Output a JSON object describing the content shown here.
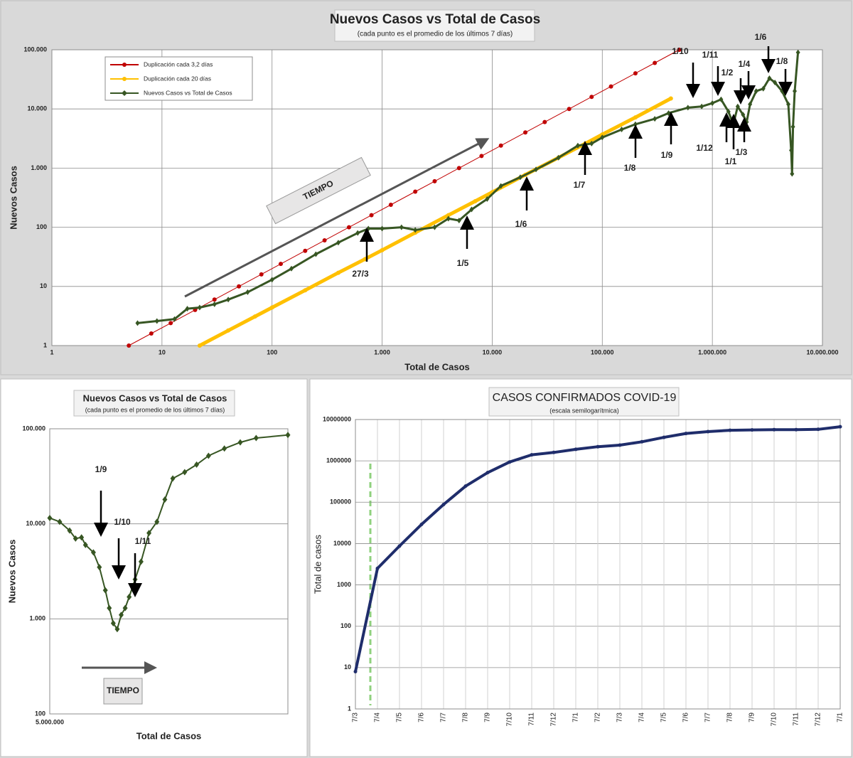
{
  "chart_data": [
    {
      "type": "line",
      "title": "Nuevos Casos vs Total de Casos",
      "subtitle": "(cada punto es el promedio de los últimos 7 días)",
      "x_label": "Total de Casos",
      "y_label": "Nuevos Casos",
      "xscale": "log",
      "yscale": "log",
      "xlim": [
        1,
        10000000
      ],
      "xticks": [
        1,
        10,
        100,
        {
          "value": 1000,
          "label": "1.000"
        },
        {
          "value": 10000,
          "label": "10.000"
        },
        {
          "value": 100000,
          "label": "100.000"
        },
        {
          "value": 1000000,
          "label": "1.000.000"
        },
        {
          "value": 10000000,
          "label": "10.000.000"
        }
      ],
      "ylim": [
        1,
        100000
      ],
      "yticks": [
        1,
        10,
        100,
        {
          "value": 1000,
          "label": "1.000"
        },
        {
          "value": 10000,
          "label": "10.000"
        },
        {
          "value": 100000,
          "label": "100.000"
        }
      ],
      "grid": true,
      "legend": "upper left",
      "series": [
        {
          "name": "Duplicación cada 3,2 días",
          "color": "#c00000",
          "marker": "circle",
          "x": [
            5,
            8,
            12,
            20,
            30,
            50,
            80,
            120,
            200,
            300,
            500,
            800,
            1200,
            2000,
            3000,
            5000,
            8000,
            12000,
            20000,
            30000,
            50000,
            80000,
            120000,
            200000,
            300000,
            500000
          ],
          "values": [
            1,
            1.6,
            2.4,
            4,
            6,
            10,
            16,
            24,
            40,
            60,
            100,
            160,
            240,
            400,
            600,
            1000,
            1600,
            2400,
            4000,
            6000,
            10000,
            16000,
            24000,
            40000,
            60000,
            100000
          ]
        },
        {
          "name": "Duplicación cada 20 días",
          "color": "#ffc000",
          "marker": "circle",
          "x": [
            22,
            40,
            70,
            100,
            200,
            400,
            700,
            1000,
            2000,
            4000,
            7000,
            10000,
            20000,
            40000,
            70000,
            100000,
            200000,
            420000
          ],
          "values": [
            1,
            1.8,
            3.1,
            4.4,
            8.6,
            17,
            29,
            41,
            81,
            160,
            275,
            390,
            770,
            1500,
            2600,
            3700,
            7200,
            15000
          ]
        },
        {
          "name": "Nuevos Casos vs Total de Casos",
          "color": "#375623",
          "marker": "diamond",
          "x": [
            6,
            9,
            13,
            17,
            22,
            30,
            40,
            60,
            100,
            150,
            250,
            400,
            600,
            750,
            1000,
            1500,
            2000,
            3000,
            4000,
            5000,
            6500,
            9000,
            12000,
            18000,
            25000,
            40000,
            60000,
            80000,
            100000,
            150000,
            200000,
            300000,
            400000,
            600000,
            800000,
            1000000,
            1200000,
            1400000,
            1550000,
            1700000,
            1900000,
            2050000,
            2200000,
            2500000,
            2900000,
            3300000,
            3700000,
            4300000,
            4900000,
            5200000,
            5300000,
            5400000,
            5600000,
            6000000
          ],
          "values": [
            2.4,
            2.6,
            2.8,
            4.2,
            4.4,
            5,
            6,
            8,
            13,
            20,
            35,
            55,
            80,
            95,
            95,
            100,
            90,
            100,
            140,
            130,
            200,
            300,
            500,
            700,
            950,
            1500,
            2400,
            2600,
            3300,
            4500,
            5500,
            6800,
            8500,
            10500,
            11000,
            12500,
            14500,
            9000,
            5500,
            11000,
            8000,
            6000,
            12000,
            20000,
            22000,
            33000,
            28000,
            20000,
            12000,
            2000,
            800,
            5000,
            20000,
            90000
          ]
        }
      ],
      "annotations": [
        "TIEMPO",
        "27/3",
        "1/5",
        "1/6",
        "1/7",
        "1/8",
        "1/9",
        "1/10",
        "1/11",
        "1/12",
        "1/1",
        "1/2",
        "1/3",
        "1/4",
        "1/6",
        "1/8"
      ]
    },
    {
      "type": "line",
      "title": "Nuevos Casos vs Total de Casos",
      "subtitle": "(cada punto es el promedio de los últimos 7 días)",
      "x_label": "Total de Casos",
      "y_label": "Nuevos Casos",
      "xscale": "linear",
      "yscale": "log",
      "xlim": [
        5000000,
        6200000
      ],
      "xticks": [
        {
          "value": 5000000,
          "label": "5.000.000"
        }
      ],
      "ylim": [
        100,
        100000
      ],
      "yticks": [
        100,
        {
          "value": 1000,
          "label": "1.000"
        },
        {
          "value": 10000,
          "label": "10.000"
        },
        {
          "value": 100000,
          "label": "100.000"
        }
      ],
      "grid": true,
      "color": "#375623",
      "marker": "diamond",
      "x": [
        5000000,
        5050000,
        5100000,
        5130000,
        5160000,
        5180000,
        5220000,
        5250000,
        5280000,
        5300000,
        5320000,
        5340000,
        5360000,
        5380000,
        5400000,
        5430000,
        5460000,
        5500000,
        5540000,
        5580000,
        5620000,
        5680000,
        5740000,
        5800000,
        5880000,
        5960000,
        6040000,
        6200000
      ],
      "values": [
        11500,
        10500,
        8500,
        7000,
        7200,
        6000,
        5000,
        3500,
        2000,
        1300,
        900,
        780,
        1100,
        1300,
        1700,
        2600,
        4000,
        8000,
        10500,
        18000,
        30000,
        35000,
        42000,
        52000,
        62000,
        72000,
        80000,
        86000
      ],
      "annotations": [
        "1/9",
        "1/10",
        "1/11",
        "TIEMPO"
      ]
    },
    {
      "type": "line",
      "title": "CASOS CONFIRMADOS COVID-19",
      "subtitle": "(escala semilogarítmica)",
      "y_label": "Total de casos",
      "yscale": "log",
      "categories": [
        "7/3",
        "7/4",
        "7/5",
        "7/6",
        "7/7",
        "7/8",
        "7/9",
        "7/10",
        "7/11",
        "7/12",
        "7/1",
        "7/2",
        "7/3",
        "7/4",
        "7/5",
        "7/6",
        "7/7",
        "7/8",
        "7/9",
        "7/10",
        "7/11",
        "7/12",
        "7/1"
      ],
      "values": [
        8,
        2500,
        8700,
        29000,
        88000,
        245000,
        520000,
        940000,
        1400000,
        1600000,
        1900000,
        2200000,
        2400000,
        2900000,
        3700000,
        4600000,
        5100000,
        5500000,
        5600000,
        5700000,
        5700000,
        5800000,
        6700000
      ],
      "ylim": [
        1,
        10000000
      ],
      "yticks": [
        1,
        10,
        100,
        1000,
        10000,
        100000,
        1000000,
        10000000
      ],
      "grid": true,
      "color": "#1f2d6b",
      "marker": "circle"
    }
  ]
}
